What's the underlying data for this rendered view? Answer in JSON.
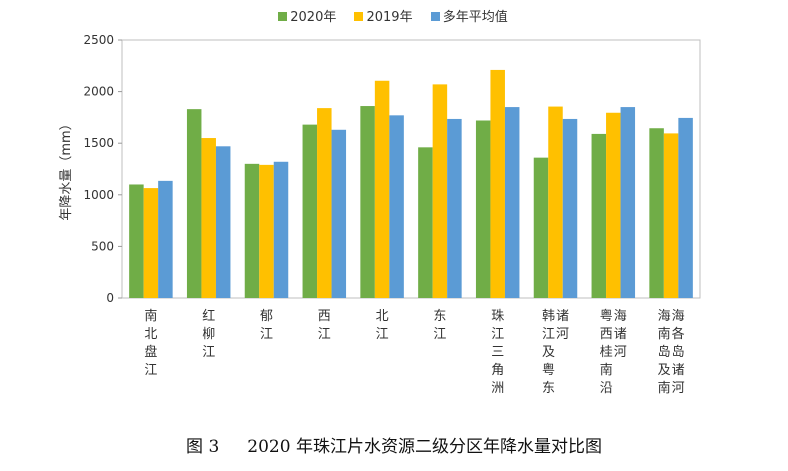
{
  "chart_data": {
    "type": "bar",
    "ylabel": "年降水量（mm）",
    "ylim": [
      0,
      2500
    ],
    "yticks": [
      0,
      500,
      1000,
      1500,
      2000,
      2500
    ],
    "grid": false,
    "legend_position": "top",
    "categories": [
      [
        "南北盘江"
      ],
      [
        "红柳江"
      ],
      [
        "郁江"
      ],
      [
        "西江"
      ],
      [
        "北江"
      ],
      [
        "东江"
      ],
      [
        "珠江三角洲"
      ],
      [
        "韩江及粤东",
        "诸河"
      ],
      [
        "粤西桂南沿",
        "海诸河"
      ],
      [
        "海南岛及南",
        "海各岛诸河"
      ]
    ],
    "series": [
      {
        "name": "2020年",
        "color": "#70AD47",
        "values": [
          1100,
          1830,
          1300,
          1680,
          1860,
          1460,
          1720,
          1360,
          1590,
          1645
        ]
      },
      {
        "name": "2019年",
        "color": "#FFC000",
        "values": [
          1065,
          1550,
          1290,
          1840,
          2105,
          2070,
          2210,
          1855,
          1795,
          1595
        ]
      },
      {
        "name": "多年平均值",
        "color": "#5B9BD5",
        "values": [
          1135,
          1470,
          1320,
          1630,
          1770,
          1735,
          1850,
          1735,
          1850,
          1745
        ]
      }
    ]
  },
  "caption": {
    "figure": "图 3",
    "title": "2020 年珠江片水资源二级分区年降水量对比图"
  }
}
